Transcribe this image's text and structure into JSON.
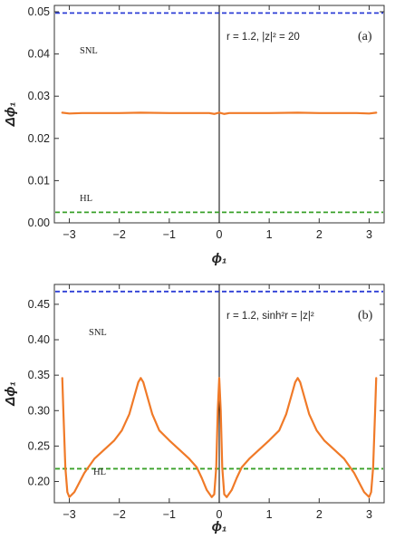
{
  "colors": {
    "snl": "#2e3fd6",
    "hl": "#3aa12a",
    "curve": "#f07a28",
    "axis": "#333333",
    "vline": "#000000"
  },
  "chart_data": [
    {
      "type": "line",
      "panel_tag": "(a)",
      "param_text": "r = 1.2,  |z|² = 20",
      "xlabel": "ϕ₁",
      "ylabel": "Δϕ₁",
      "xlim": [
        -3.3,
        3.3
      ],
      "ylim": [
        0.0,
        0.0515
      ],
      "xticks": [
        -3,
        -2,
        -1,
        0,
        1,
        2,
        3
      ],
      "xtick_labels": [
        "−3",
        "−2",
        "−1",
        "0",
        "1",
        "2",
        "3"
      ],
      "yticks": [
        0.0,
        0.01,
        0.02,
        0.03,
        0.04,
        0.05
      ],
      "ytick_labels": [
        "0.00",
        "0.01",
        "0.02",
        "0.03",
        "0.04",
        "0.05"
      ],
      "hlines": [
        {
          "label": "SNL",
          "y": 0.0497,
          "color_key": "snl"
        },
        {
          "label": "HL",
          "y": 0.0025,
          "color_key": "hl"
        }
      ],
      "vline_x": 0,
      "series": [
        {
          "x": [
            -3.1416,
            -3.0,
            -2.75,
            -2.5,
            -2.0,
            -1.5708,
            -1.0,
            -0.5,
            -0.2,
            -0.1,
            0.0,
            0.1,
            0.2,
            0.5,
            1.0,
            1.5708,
            2.0,
            2.5,
            2.75,
            3.0,
            3.1416
          ],
          "y": [
            0.0261,
            0.0259,
            0.026,
            0.026,
            0.026,
            0.0261,
            0.026,
            0.026,
            0.026,
            0.0258,
            0.0261,
            0.0258,
            0.026,
            0.026,
            0.026,
            0.0261,
            0.026,
            0.026,
            0.026,
            0.0259,
            0.0261
          ]
        }
      ]
    },
    {
      "type": "line",
      "panel_tag": "(b)",
      "param_text": "r = 1.2,  sinh²r = |z|²",
      "xlabel": "ϕ₁",
      "ylabel": "Δϕ₁",
      "xlim": [
        -3.3,
        3.3
      ],
      "ylim": [
        0.17,
        0.478
      ],
      "xticks": [
        -3,
        -2,
        -1,
        0,
        1,
        2,
        3
      ],
      "xtick_labels": [
        "−3",
        "−2",
        "−1",
        "0",
        "1",
        "2",
        "3"
      ],
      "yticks": [
        0.2,
        0.25,
        0.3,
        0.35,
        0.4,
        0.45
      ],
      "ytick_labels": [
        "0.20",
        "0.25",
        "0.30",
        "0.35",
        "0.40",
        "0.45"
      ],
      "hlines": [
        {
          "label": "SNL",
          "y": 0.468,
          "color_key": "snl"
        },
        {
          "label": "HL",
          "y": 0.218,
          "color_key": "hl"
        }
      ],
      "vline_x": 0,
      "series": [
        {
          "x": [
            -3.1416,
            -3.12,
            -3.08,
            -3.04,
            -3.0,
            -2.9,
            -2.7,
            -2.5,
            -2.3,
            -2.1,
            -1.95,
            -1.8,
            -1.7,
            -1.62,
            -1.5708,
            -1.52,
            -1.44,
            -1.34,
            -1.2,
            -1.0,
            -0.8,
            -0.6,
            -0.45,
            -0.35,
            -0.25,
            -0.15,
            -0.1,
            -0.06,
            -0.03,
            0.0,
            0.03,
            0.06,
            0.1,
            0.15,
            0.25,
            0.35,
            0.45,
            0.6,
            0.8,
            1.0,
            1.2,
            1.34,
            1.44,
            1.52,
            1.5708,
            1.62,
            1.7,
            1.8,
            1.95,
            2.1,
            2.3,
            2.5,
            2.7,
            2.9,
            3.0,
            3.04,
            3.08,
            3.12,
            3.1416
          ],
          "y": [
            0.346,
            0.3,
            0.22,
            0.185,
            0.178,
            0.185,
            0.212,
            0.232,
            0.245,
            0.258,
            0.272,
            0.295,
            0.32,
            0.34,
            0.346,
            0.34,
            0.32,
            0.295,
            0.272,
            0.258,
            0.245,
            0.232,
            0.22,
            0.205,
            0.188,
            0.178,
            0.182,
            0.22,
            0.3,
            0.346,
            0.3,
            0.22,
            0.182,
            0.178,
            0.188,
            0.205,
            0.22,
            0.232,
            0.245,
            0.258,
            0.272,
            0.295,
            0.32,
            0.34,
            0.346,
            0.34,
            0.32,
            0.295,
            0.272,
            0.258,
            0.245,
            0.232,
            0.212,
            0.185,
            0.178,
            0.185,
            0.22,
            0.3,
            0.346
          ]
        }
      ]
    }
  ]
}
